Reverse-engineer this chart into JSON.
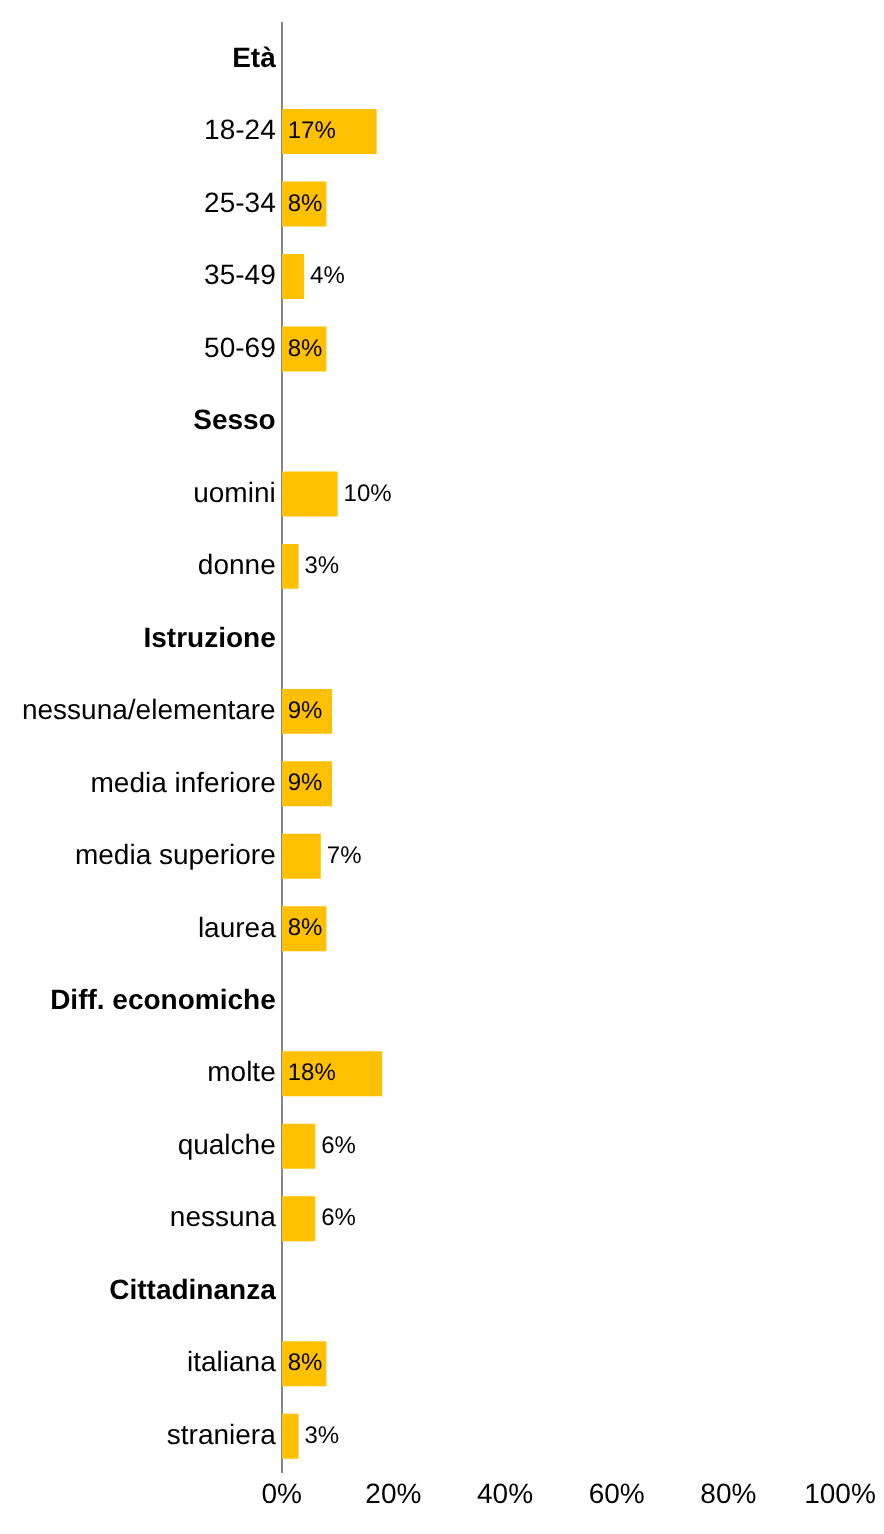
{
  "chart_data": {
    "type": "bar",
    "orientation": "horizontal",
    "categories": [
      "Età",
      "18-24",
      "25-34",
      "35-49",
      "50-69",
      "Sesso",
      "uomini",
      "donne",
      "Istruzione",
      "nessuna/elementare",
      "media inferiore",
      "media superiore",
      "laurea",
      "Diff. economiche",
      "molte",
      "qualche",
      "nessuna",
      "Cittadinanza",
      "italiana",
      "straniera"
    ],
    "values": [
      null,
      17,
      8,
      4,
      8,
      null,
      10,
      3,
      null,
      9,
      9,
      7,
      8,
      null,
      18,
      6,
      6,
      null,
      8,
      3
    ],
    "value_labels": [
      null,
      "17%",
      "8%",
      "4%",
      "8%",
      null,
      "10%",
      "3%",
      null,
      "9%",
      "9%",
      "7%",
      "8%",
      null,
      "18%",
      "6%",
      "6%",
      null,
      "8%",
      "3%"
    ],
    "color": "#ffc000",
    "xlim": [
      0,
      100
    ],
    "xticks": [
      {
        "value": 0,
        "label": "0%"
      },
      {
        "value": 20,
        "label": "20%"
      },
      {
        "value": 40,
        "label": "40%"
      },
      {
        "value": 60,
        "label": "60%"
      },
      {
        "value": 80,
        "label": "80%"
      },
      {
        "value": 100,
        "label": "100%"
      }
    ],
    "grid": false,
    "legend": false
  }
}
